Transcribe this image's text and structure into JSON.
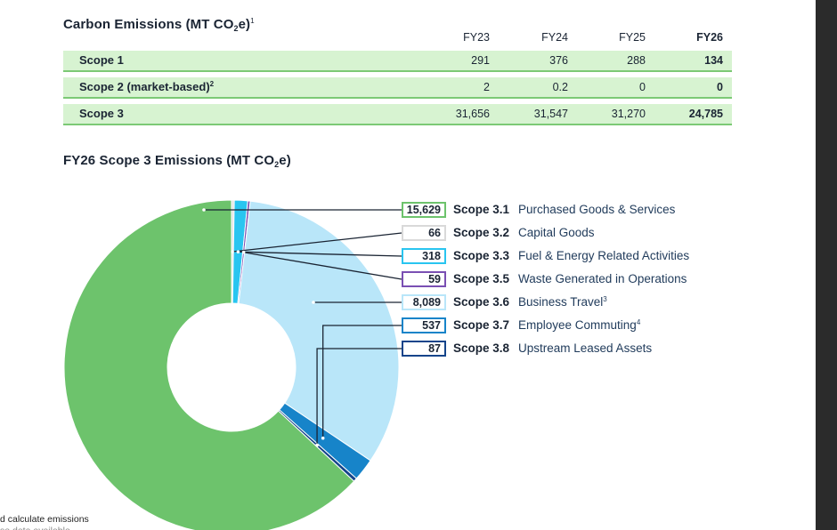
{
  "table": {
    "title": "Carbon Emissions (MT CO",
    "title_sub": "2",
    "title_tail": "e)",
    "title_sup": "1",
    "columns": [
      "FY23",
      "FY24",
      "FY25",
      "FY26"
    ],
    "rows": [
      {
        "label": "Scope 1",
        "sup": "",
        "values": [
          "291",
          "376",
          "288",
          "134"
        ]
      },
      {
        "label": "Scope 2 (market-based)",
        "sup": "2",
        "values": [
          "2",
          "0.2",
          "0",
          "0"
        ]
      },
      {
        "label": "Scope 3",
        "sup": "",
        "values": [
          "31,656",
          "31,547",
          "31,270",
          "24,785"
        ]
      }
    ]
  },
  "donut": {
    "title": "FY26 Scope 3 Emissions (MT CO",
    "title_sub": "2",
    "title_tail": "e)"
  },
  "chart_data": {
    "type": "pie",
    "title": "FY26 Scope 3 Emissions (MT CO2e)",
    "series": [
      {
        "value_label": "15,629",
        "value": 15629,
        "code": "Scope 3.1",
        "name": "Purchased Goods & Services",
        "sup": "",
        "color": "#6dc36c",
        "border": "#6dc36c"
      },
      {
        "value_label": "66",
        "value": 66,
        "code": "Scope 3.2",
        "name": "Capital Goods",
        "sup": "",
        "color": "#e3e3e3",
        "border": "#d9d9d9"
      },
      {
        "value_label": "318",
        "value": 318,
        "code": "Scope 3.3",
        "name": "Fuel & Energy Related Activities",
        "sup": "",
        "color": "#29c5f0",
        "border": "#29c5f0"
      },
      {
        "value_label": "59",
        "value": 59,
        "code": "Scope 3.5",
        "name": "Waste Generated in Operations",
        "sup": "",
        "color": "#7a4fb3",
        "border": "#7a4fb3"
      },
      {
        "value_label": "8,089",
        "value": 8089,
        "code": "Scope 3.6",
        "name": "Business Travel",
        "sup": "3",
        "color": "#b9e6f9",
        "border": "#b9e6f9"
      },
      {
        "value_label": "537",
        "value": 537,
        "code": "Scope 3.7",
        "name": "Employee Commuting",
        "sup": "4",
        "color": "#1784c9",
        "border": "#1784c9"
      },
      {
        "value_label": "87",
        "value": 87,
        "code": "Scope 3.8",
        "name": "Upstream Leased Assets",
        "sup": "",
        "color": "#14448a",
        "border": "#14448a"
      }
    ]
  },
  "footnotes": [
    "d calculate emissions",
    "se data available"
  ]
}
